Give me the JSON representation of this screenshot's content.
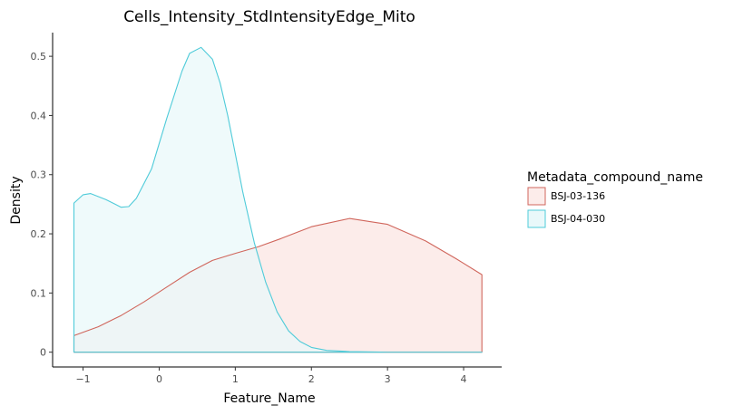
{
  "chart_data": {
    "type": "area",
    "title": "Cells_Intensity_StdIntensityEdge_Mito",
    "xlabel": "Feature_Name",
    "ylabel": "Density",
    "xlim": [
      -1.4,
      4.5
    ],
    "ylim": [
      -0.025,
      0.54
    ],
    "x_ticks": [
      -1,
      0,
      1,
      2,
      3,
      4
    ],
    "y_ticks": [
      0,
      0.1,
      0.2,
      0.3,
      0.4,
      0.5
    ],
    "x_tick_labels": [
      "−1",
      "0",
      "1",
      "2",
      "3",
      "4"
    ],
    "y_tick_labels": [
      "0",
      "0.1",
      "0.2",
      "0.3",
      "0.4",
      "0.5"
    ],
    "grid": false,
    "legend": {
      "title": "Metadata_compound_name",
      "position": "right"
    },
    "series": [
      {
        "name": "BSJ-03-136",
        "line_color": "#d0665c",
        "fill_color": "#fcecea",
        "x": [
          -1.12,
          -0.8,
          -0.5,
          -0.2,
          0.1,
          0.4,
          0.7,
          1.0,
          1.3,
          1.6,
          2.0,
          2.5,
          3.0,
          3.5,
          3.9,
          4.24
        ],
        "y": [
          0.028,
          0.043,
          0.062,
          0.085,
          0.11,
          0.135,
          0.155,
          0.167,
          0.178,
          0.192,
          0.212,
          0.226,
          0.216,
          0.188,
          0.158,
          0.131
        ]
      },
      {
        "name": "BSJ-04-030",
        "line_color": "#4fcbd9",
        "fill_color": "#e9f8fa",
        "x": [
          -1.12,
          -1.0,
          -0.9,
          -0.7,
          -0.5,
          -0.4,
          -0.3,
          -0.1,
          0.1,
          0.3,
          0.4,
          0.55,
          0.7,
          0.8,
          0.9,
          1.0,
          1.1,
          1.25,
          1.4,
          1.55,
          1.7,
          1.85,
          2.0,
          2.2,
          2.5,
          3.0,
          4.24
        ],
        "y": [
          0.252,
          0.266,
          0.268,
          0.258,
          0.245,
          0.246,
          0.26,
          0.31,
          0.395,
          0.475,
          0.505,
          0.515,
          0.495,
          0.455,
          0.4,
          0.335,
          0.27,
          0.185,
          0.118,
          0.068,
          0.036,
          0.018,
          0.008,
          0.003,
          0.001,
          0.0,
          0.0
        ]
      }
    ]
  }
}
